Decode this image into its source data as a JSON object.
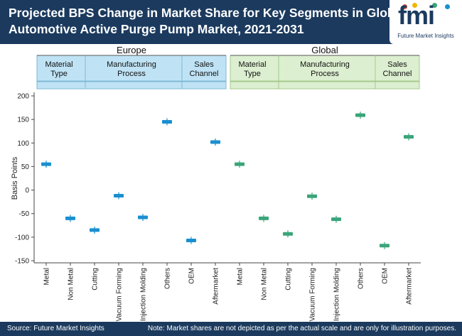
{
  "header": {
    "title_line1": "Projected BPS Change in Market Share for Key Segments in Global",
    "title_line2": "Automotive Active Purge Pump Market, 2021-2031"
  },
  "logo": {
    "word": "fmi",
    "caption": "Future Market Insights"
  },
  "footer": {
    "source": "Source: Future Market Insights",
    "note": "Note: Market shares are not depicted as per the actual scale and are only for illustration purposes."
  },
  "colors": {
    "header_bg": "#1b3a5e",
    "europe_marker": "#1a8fd0",
    "global_marker": "#3aa57a",
    "europe_band": "#bfe3f5",
    "global_band": "#dcefd0"
  },
  "chart_data": {
    "type": "scatter",
    "ylabel": "Basis Points",
    "ylim": [
      -150,
      200
    ],
    "yticks": [
      200,
      150,
      100,
      50,
      0,
      -50,
      -100,
      -150
    ],
    "grid": false,
    "regions": [
      {
        "name": "Europe",
        "color": "#1a8fd0",
        "groups": [
          {
            "label_line1": "Material",
            "label_line2": "Type",
            "categories": [
              "Metal",
              "Non Metal"
            ]
          },
          {
            "label_line1": "Manufacturing",
            "label_line2": "Process",
            "categories": [
              "Cutting",
              "Vacuum Forming",
              "Injection Molding",
              "Others"
            ]
          },
          {
            "label_line1": "Sales",
            "label_line2": "Channel",
            "categories": [
              "OEM",
              "Aftermarket"
            ]
          }
        ]
      },
      {
        "name": "Global",
        "color": "#3aa57a",
        "groups": [
          {
            "label_line1": "Material",
            "label_line2": "Type",
            "categories": [
              "Metal",
              "Non Metal"
            ]
          },
          {
            "label_line1": "Manufacturing",
            "label_line2": "Process",
            "categories": [
              "Cutting",
              "Vacuum Forming",
              "Injection Molding",
              "Others"
            ]
          },
          {
            "label_line1": "Sales",
            "label_line2": "Channel",
            "categories": [
              "OEM",
              "Aftermarket"
            ]
          }
        ]
      }
    ],
    "series": [
      {
        "region": "Europe",
        "values": [
          55,
          -60,
          -85,
          -12,
          -58,
          145,
          -107,
          102
        ]
      },
      {
        "region": "Global",
        "values": [
          55,
          -60,
          -93,
          -13,
          -62,
          159,
          -118,
          113
        ]
      }
    ]
  }
}
